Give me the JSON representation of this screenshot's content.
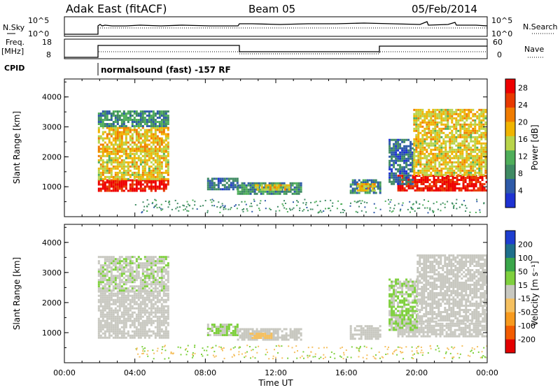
{
  "header": {
    "title": "Adak East (fitACF)",
    "beam": "Beam 05",
    "date": "05/Feb/2014"
  },
  "nsky_panel": {
    "label": "N.Sky",
    "left_ticks": [
      "10^5",
      "10^0"
    ],
    "right_ticks": [
      "10^5",
      "10^0"
    ],
    "right_label": "N.Search"
  },
  "freq_panel": {
    "label_line1": "Freq.",
    "label_line2": "[MHz]",
    "left_ticks": [
      "18",
      "8"
    ],
    "right_ticks": [
      "60",
      "0"
    ],
    "right_label": "Nave"
  },
  "cpid": {
    "label": "CPID",
    "text": "normalsound (fast) -157 RF"
  },
  "time_axis": {
    "label": "Time UT",
    "ticks": [
      "00:00",
      "04:00",
      "08:00",
      "12:00",
      "16:00",
      "20:00",
      "00:00"
    ]
  },
  "colors": {
    "power": [
      "#1e32d2",
      "#2e5aa8",
      "#3f8a63",
      "#4fae5a",
      "#b8d44a",
      "#f0b400",
      "#f07c00",
      "#e83a00",
      "#ee0000"
    ],
    "velocity": [
      "#e30000",
      "#f25c00",
      "#f79a1e",
      "#f5c060",
      "#c8c8c0",
      "#7fd03e",
      "#3aa64a",
      "#1e6f8c",
      "#1e3ed0"
    ]
  },
  "chart_data": [
    {
      "type": "heatmap",
      "panel": "power",
      "x": [
        "00:00",
        "04:00",
        "08:00",
        "12:00",
        "16:00",
        "20:00",
        "00:00"
      ],
      "xlabel": "Time UT",
      "ylabel": "Slant Range [km]",
      "yticks": [
        "1000",
        "2000",
        "3000",
        "4000"
      ],
      "ylim": [
        0,
        4600
      ],
      "colorbar_label": "Power [dB]",
      "colorbar_ticks": [
        "4",
        "8",
        "12",
        "16",
        "20",
        "24",
        "28"
      ],
      "colorbar_range": [
        0,
        30
      ],
      "regions": [
        {
          "t0": 1.9,
          "t1": 5.9,
          "r0": 850,
          "r1": 1250,
          "value": 28
        },
        {
          "t0": 1.9,
          "t1": 5.9,
          "r0": 1250,
          "r1": 2200,
          "value": 17
        },
        {
          "t0": 1.9,
          "t1": 5.9,
          "r0": 2200,
          "r1": 3000,
          "value": 18
        },
        {
          "t0": 1.9,
          "t1": 5.9,
          "r0": 3000,
          "r1": 3550,
          "value": 9
        },
        {
          "t0": 8.1,
          "t1": 9.8,
          "r0": 900,
          "r1": 1300,
          "value": 6
        },
        {
          "t0": 9.8,
          "t1": 13.4,
          "r0": 780,
          "r1": 1150,
          "value": 9
        },
        {
          "t0": 10.8,
          "t1": 12.8,
          "r0": 870,
          "r1": 1080,
          "value": 17
        },
        {
          "t0": 16.2,
          "t1": 17.9,
          "r0": 780,
          "r1": 1250,
          "value": 8
        },
        {
          "t0": 16.6,
          "t1": 17.6,
          "r0": 880,
          "r1": 1120,
          "value": 18
        },
        {
          "t0": 18.9,
          "t1": 24.0,
          "r0": 850,
          "r1": 1400,
          "value": 28
        },
        {
          "t0": 18.4,
          "t1": 19.8,
          "r0": 1100,
          "r1": 2600,
          "value": 6
        },
        {
          "t0": 19.8,
          "t1": 24.0,
          "r0": 1400,
          "r1": 3600,
          "value": 17
        }
      ]
    },
    {
      "type": "heatmap",
      "panel": "velocity",
      "x": [
        "00:00",
        "04:00",
        "08:00",
        "12:00",
        "16:00",
        "20:00",
        "00:00"
      ],
      "xlabel": "Time UT",
      "ylabel": "Slant Range [km]",
      "yticks": [
        "1000",
        "2000",
        "3000",
        "4000"
      ],
      "ylim": [
        0,
        4600
      ],
      "colorbar_label": "Velocity [m s⁻¹]",
      "colorbar_ticks": [
        "200",
        "100",
        "50",
        "15",
        "-15",
        "-50",
        "-100",
        "-200"
      ],
      "colorbar_range": [
        -250,
        250
      ],
      "regions": [
        {
          "t0": 1.9,
          "t1": 5.9,
          "r0": 850,
          "r1": 2400,
          "value": 0
        },
        {
          "t0": 1.9,
          "t1": 5.9,
          "r0": 2400,
          "r1": 3550,
          "value": 20
        },
        {
          "t0": 8.1,
          "t1": 9.8,
          "r0": 900,
          "r1": 1300,
          "value": 30
        },
        {
          "t0": 9.8,
          "t1": 13.4,
          "r0": 780,
          "r1": 1150,
          "value": 0
        },
        {
          "t0": 10.5,
          "t1": 11.8,
          "r0": 800,
          "r1": 1000,
          "value": -60
        },
        {
          "t0": 16.2,
          "t1": 17.9,
          "r0": 780,
          "r1": 1250,
          "value": 0
        },
        {
          "t0": 18.9,
          "t1": 24.0,
          "r0": 850,
          "r1": 1400,
          "value": 0
        },
        {
          "t0": 18.4,
          "t1": 20.0,
          "r0": 1100,
          "r1": 2800,
          "value": 30
        },
        {
          "t0": 20.0,
          "t1": 24.0,
          "r0": 1400,
          "r1": 3600,
          "value": 5
        }
      ]
    }
  ]
}
